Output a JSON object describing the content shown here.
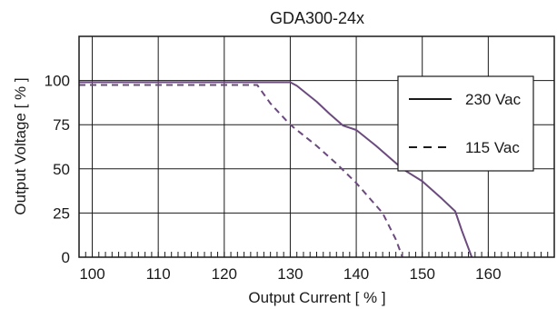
{
  "chart_data": {
    "type": "line",
    "title": "GDA300-24x",
    "xlabel": "Output Current [ % ]",
    "ylabel": "Output Voltage  [ % ]",
    "xlim": [
      98,
      170
    ],
    "ylim": [
      0,
      125
    ],
    "xticks": [
      100,
      110,
      120,
      130,
      140,
      150,
      160
    ],
    "yticks": [
      0,
      25,
      50,
      75,
      100
    ],
    "grid": true,
    "legend_position": "top-right",
    "line_color": "#6b4a7e",
    "series": [
      {
        "name": "230 Vac",
        "style": "solid",
        "x": [
          98,
          130,
          131,
          134,
          136,
          138,
          140,
          143,
          147,
          150,
          153,
          155,
          156,
          157,
          157.5
        ],
        "y": [
          99,
          99,
          97,
          88,
          81,
          74.5,
          72,
          63,
          50,
          43,
          33,
          26,
          15,
          5,
          0
        ]
      },
      {
        "name": "115 Vac",
        "style": "dashed",
        "x": [
          98,
          125,
          127,
          130,
          134,
          137,
          140,
          144,
          146,
          147
        ],
        "y": [
          97.5,
          97.5,
          87,
          75,
          63,
          53,
          42,
          25,
          10,
          0
        ]
      }
    ]
  }
}
